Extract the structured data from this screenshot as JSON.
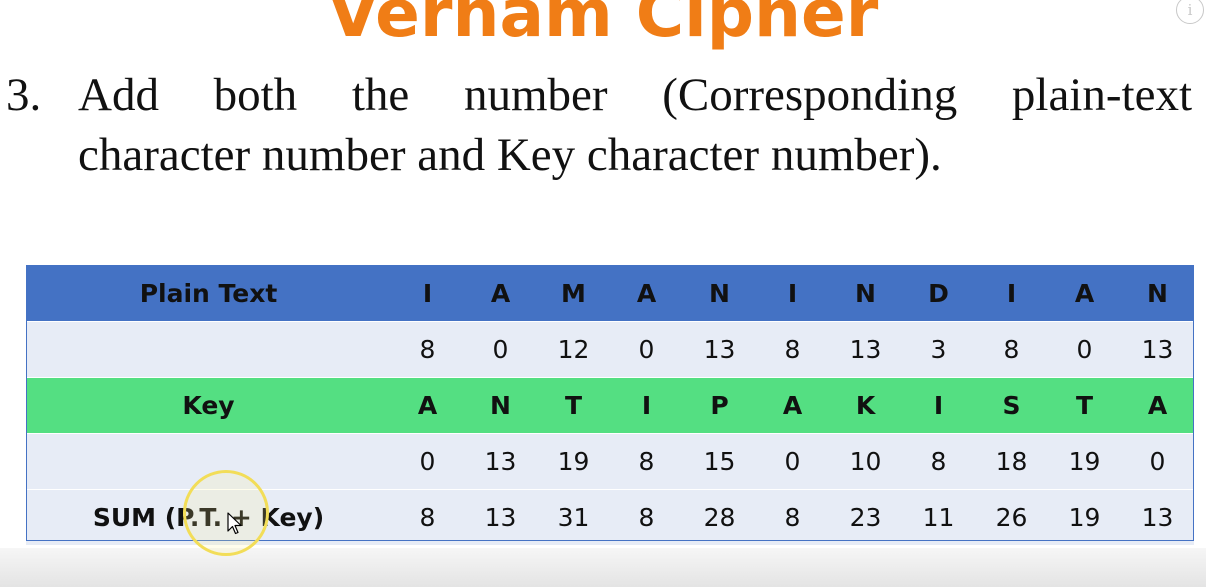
{
  "slide": {
    "title": "Vernam Cipher",
    "step": {
      "number": "3.",
      "line1_words": [
        "Add",
        "both",
        "the",
        "number",
        "(Corresponding",
        "plain-text"
      ],
      "line2": "character number and Key character number)."
    }
  },
  "table": {
    "rows": [
      {
        "label": "Plain Text",
        "style": "header",
        "cells": [
          "I",
          "A",
          "M",
          "A",
          "N",
          "I",
          "N",
          "D",
          "I",
          "A",
          "N"
        ]
      },
      {
        "label": "",
        "style": "light",
        "cells": [
          "8",
          "0",
          "12",
          "0",
          "13",
          "8",
          "13",
          "3",
          "8",
          "0",
          "13"
        ]
      },
      {
        "label": "Key",
        "style": "key",
        "cells": [
          "A",
          "N",
          "T",
          "I",
          "P",
          "A",
          "K",
          "I",
          "S",
          "T",
          "A"
        ]
      },
      {
        "label": "",
        "style": "light",
        "cells": [
          "0",
          "13",
          "19",
          "8",
          "15",
          "0",
          "10",
          "8",
          "18",
          "19",
          "0"
        ]
      },
      {
        "label": "SUM (P.T. + Key)",
        "style": "sum",
        "cells": [
          "8",
          "13",
          "31",
          "8",
          "28",
          "8",
          "23",
          "11",
          "26",
          "19",
          "13"
        ]
      }
    ]
  },
  "icons": {
    "info": "info-icon",
    "pointer": "mouse-pointer-icon"
  },
  "colors": {
    "title": "#f07d16",
    "header_row": "#4472c4",
    "key_row": "#54df82",
    "light_row": "#e7ecf6",
    "cursor_highlight": "#f2dd58"
  }
}
